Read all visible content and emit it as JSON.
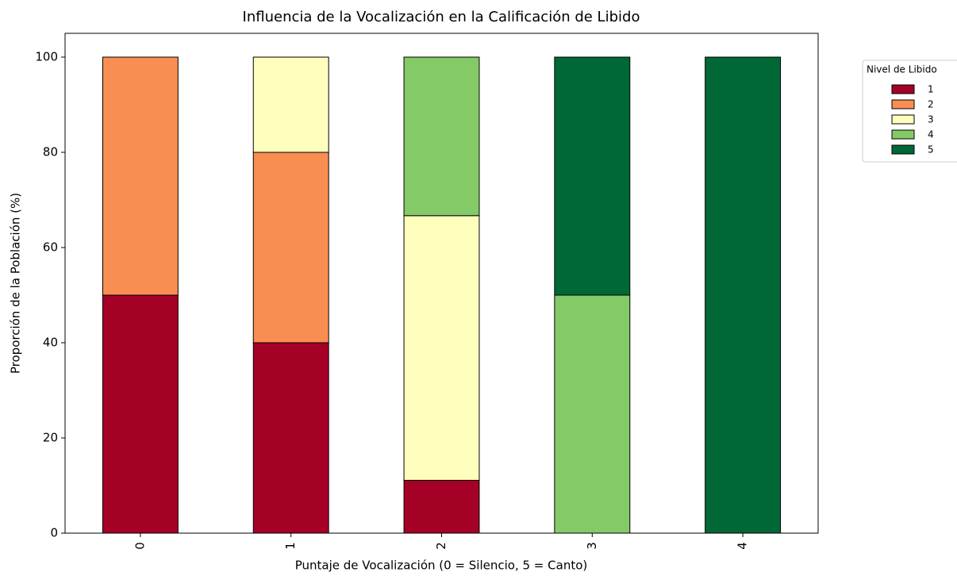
{
  "chart_data": {
    "type": "stacked_bar",
    "title": "Influencia de la Vocalización en la Calificación de Libido",
    "x_label": "Puntaje de Vocalización (0 = Silencio, 5 = Canto)",
    "y_label": "Proporción de la Población (%)",
    "categories": [
      "0",
      "1",
      "2",
      "3",
      "4"
    ],
    "legend_title": "Nivel de Libido",
    "series": [
      {
        "name": "1",
        "color": "#a50026",
        "values": [
          50,
          40,
          11.1,
          0,
          0
        ]
      },
      {
        "name": "2",
        "color": "#f98e52",
        "values": [
          50,
          40,
          0,
          0,
          0
        ]
      },
      {
        "name": "3",
        "color": "#fefebd",
        "values": [
          0,
          20,
          55.6,
          0,
          0
        ]
      },
      {
        "name": "4",
        "color": "#84ca66",
        "values": [
          0,
          0,
          33.3,
          50,
          0
        ]
      },
      {
        "name": "5",
        "color": "#006837",
        "values": [
          0,
          0,
          0,
          50,
          100
        ]
      }
    ],
    "ylim": [
      0,
      105
    ],
    "yticks": [
      0,
      20,
      40,
      60,
      80,
      100
    ]
  }
}
